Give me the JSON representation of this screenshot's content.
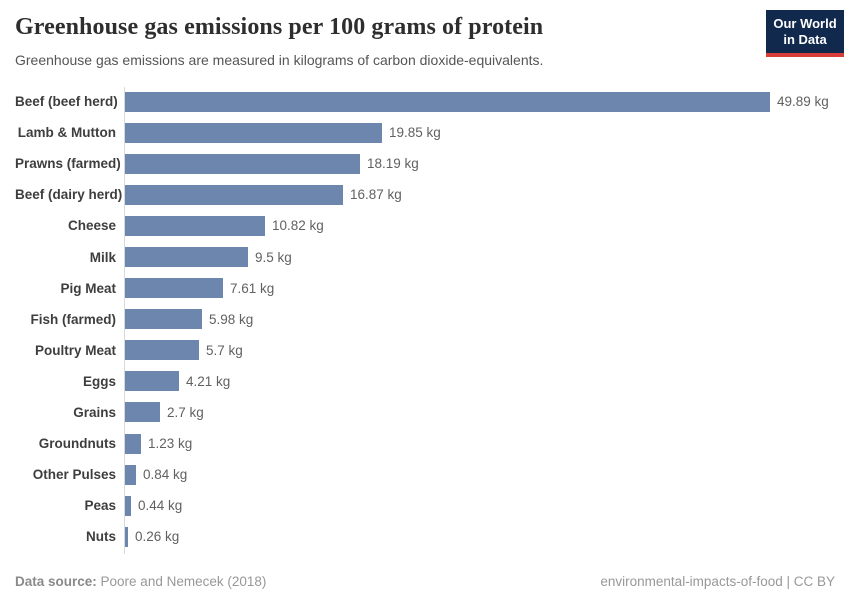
{
  "header": {
    "title": "Greenhouse gas emissions per 100 grams of protein",
    "subtitle": "Greenhouse gas emissions are measured in kilograms of carbon dioxide-equivalents."
  },
  "logo": {
    "line1": "Our World",
    "line2": "in Data",
    "bg_color": "#12294e",
    "accent_color": "#d93d37"
  },
  "chart_data": {
    "type": "bar",
    "orientation": "horizontal",
    "title": "Greenhouse gas emissions per 100 grams of protein",
    "subtitle": "Greenhouse gas emissions are measured in kilograms of carbon dioxide-equivalents.",
    "categories": [
      "Beef (beef herd)",
      "Lamb & Mutton",
      "Prawns (farmed)",
      "Beef (dairy herd)",
      "Cheese",
      "Milk",
      "Pig Meat",
      "Fish (farmed)",
      "Poultry Meat",
      "Eggs",
      "Grains",
      "Groundnuts",
      "Other Pulses",
      "Peas",
      "Nuts"
    ],
    "values": [
      49.89,
      19.85,
      18.19,
      16.87,
      10.82,
      9.5,
      7.61,
      5.98,
      5.7,
      4.21,
      2.7,
      1.23,
      0.84,
      0.44,
      0.26
    ],
    "value_labels": [
      "49.89 kg",
      "19.85 kg",
      "18.19 kg",
      "16.87 kg",
      "10.82 kg",
      "9.5 kg",
      "7.61 kg",
      "5.98 kg",
      "5.7 kg",
      "4.21 kg",
      "2.7 kg",
      "1.23 kg",
      "0.84 kg",
      "0.44 kg",
      "0.26 kg"
    ],
    "unit": "kg",
    "xlabel": "",
    "ylabel": "",
    "xlim": [
      0,
      49.89
    ],
    "grid": false,
    "legend": "none",
    "bar_color": "#6d86ad",
    "axis_line_color": "#d9d9d9"
  },
  "footer": {
    "datasource_label": "Data source:",
    "datasource_value": " Poore and Nemecek (2018)",
    "credit": "environmental-impacts-of-food | CC BY"
  }
}
